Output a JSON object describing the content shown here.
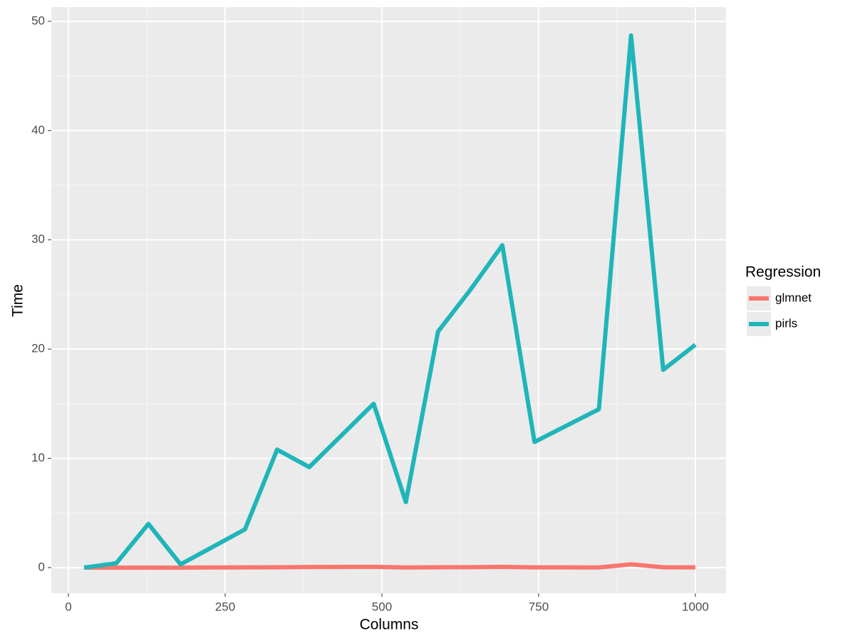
{
  "chart_data": {
    "type": "line",
    "x_label": "Columns",
    "y_label": "Time",
    "legend_title": "Regression",
    "x": [
      25,
      76.3,
      127.6,
      178.9,
      230.3,
      281.6,
      332.9,
      384.2,
      435.5,
      486.8,
      538.2,
      589.5,
      640.8,
      692.1,
      743.4,
      794.7,
      846.1,
      897.4,
      948.7,
      1000
    ],
    "series": [
      {
        "name": "glmnet",
        "color": "#F8766D",
        "values": [
          0,
          0,
          0,
          0,
          0.01,
          0.02,
          0.03,
          0.05,
          0.06,
          0.07,
          0.01,
          0.03,
          0.04,
          0.07,
          0.02,
          0.02,
          0.01,
          0.3,
          0.03,
          0.02
        ]
      },
      {
        "name": "pirls",
        "color": "#1FB5B9",
        "values": [
          0,
          0.4,
          4,
          0.3,
          1.9,
          3.5,
          10.8,
          9.2,
          12.1,
          15,
          6,
          21.6,
          25.4,
          29.5,
          11.5,
          13,
          14.5,
          48.7,
          18.1,
          20.4
        ]
      }
    ],
    "xlim": [
      -27.3,
      1048.9
    ],
    "xticks": [
      0,
      250,
      500,
      750,
      1000
    ],
    "ylim": [
      -2.35,
      51.3
    ],
    "yticks": [
      0,
      10,
      20,
      30,
      40,
      50
    ],
    "grid": true,
    "legend": "right"
  }
}
